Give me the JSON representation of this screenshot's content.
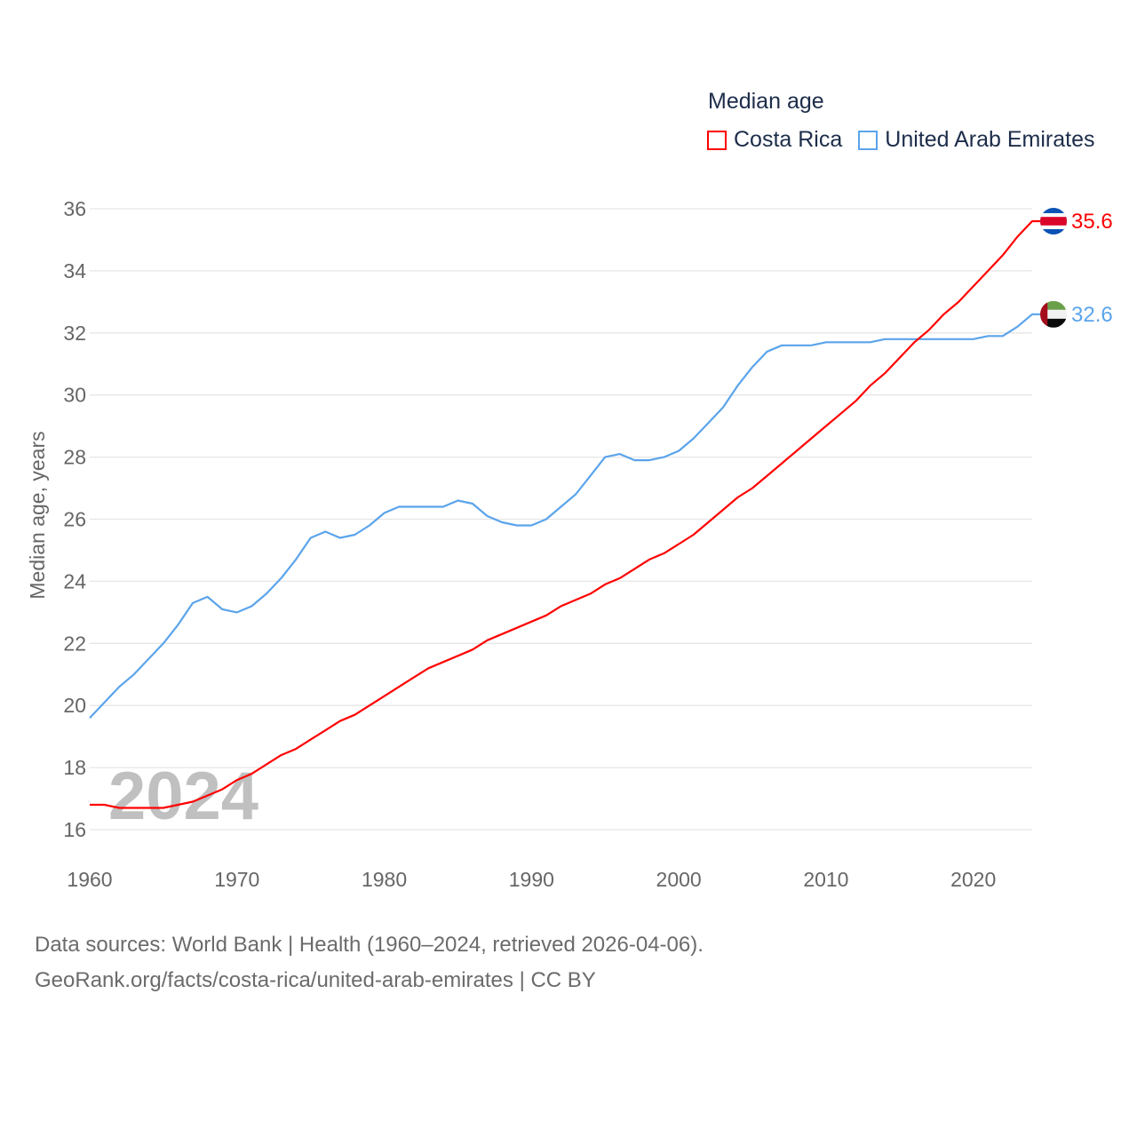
{
  "chart_data": {
    "type": "line",
    "title": "Median age",
    "xlabel": "",
    "ylabel": "Median age, years",
    "xlim": [
      1960,
      2024
    ],
    "ylim": [
      16,
      36
    ],
    "yticks": [
      16,
      18,
      20,
      22,
      24,
      26,
      28,
      30,
      32,
      34,
      36
    ],
    "xticks": [
      1960,
      1970,
      1980,
      1990,
      2000,
      2010,
      2020
    ],
    "grid": true,
    "legend_position": "top-right",
    "watermark_year": "2024",
    "x": [
      1960,
      1961,
      1962,
      1963,
      1964,
      1965,
      1966,
      1967,
      1968,
      1969,
      1970,
      1971,
      1972,
      1973,
      1974,
      1975,
      1976,
      1977,
      1978,
      1979,
      1980,
      1981,
      1982,
      1983,
      1984,
      1985,
      1986,
      1987,
      1988,
      1989,
      1990,
      1991,
      1992,
      1993,
      1994,
      1995,
      1996,
      1997,
      1998,
      1999,
      2000,
      2001,
      2002,
      2003,
      2004,
      2005,
      2006,
      2007,
      2008,
      2009,
      2010,
      2011,
      2012,
      2013,
      2014,
      2015,
      2016,
      2017,
      2018,
      2019,
      2020,
      2021,
      2022,
      2023,
      2024
    ],
    "series": [
      {
        "name": "Costa Rica",
        "color": "#ff0000",
        "end_label": "35.6",
        "flag": "costa-rica",
        "values": [
          16.8,
          16.8,
          16.7,
          16.7,
          16.7,
          16.7,
          16.8,
          16.9,
          17.1,
          17.3,
          17.6,
          17.8,
          18.1,
          18.4,
          18.6,
          18.9,
          19.2,
          19.5,
          19.7,
          20.0,
          20.3,
          20.6,
          20.9,
          21.2,
          21.4,
          21.6,
          21.8,
          22.1,
          22.3,
          22.5,
          22.7,
          22.9,
          23.2,
          23.4,
          23.6,
          23.9,
          24.1,
          24.4,
          24.7,
          24.9,
          25.2,
          25.5,
          25.9,
          26.3,
          26.7,
          27.0,
          27.4,
          27.8,
          28.2,
          28.6,
          29.0,
          29.4,
          29.8,
          30.3,
          30.7,
          31.2,
          31.7,
          32.1,
          32.6,
          33.0,
          33.5,
          34.0,
          34.5,
          35.1,
          35.6
        ]
      },
      {
        "name": "United Arab Emirates",
        "color": "#5ba4eb",
        "end_label": "32.6",
        "flag": "uae",
        "values": [
          19.6,
          20.1,
          20.6,
          21.0,
          21.5,
          22.0,
          22.6,
          23.3,
          23.5,
          23.1,
          23.0,
          23.2,
          23.6,
          24.1,
          24.7,
          25.4,
          25.6,
          25.4,
          25.5,
          25.8,
          26.2,
          26.4,
          26.4,
          26.4,
          26.4,
          26.6,
          26.5,
          26.1,
          25.9,
          25.8,
          25.8,
          26.0,
          26.4,
          26.8,
          27.4,
          28.0,
          28.1,
          27.9,
          27.9,
          28.0,
          28.2,
          28.6,
          29.1,
          29.6,
          30.3,
          30.9,
          31.4,
          31.6,
          31.6,
          31.6,
          31.7,
          31.7,
          31.7,
          31.7,
          31.8,
          31.8,
          31.8,
          31.8,
          31.8,
          31.8,
          31.8,
          31.9,
          31.9,
          32.2,
          32.6
        ]
      }
    ]
  },
  "footer": {
    "line1": "Data sources: World Bank | Health (1960–2024, retrieved 2026-04-06).",
    "line2": "GeoRank.org/facts/costa-rica/united-arab-emirates | CC BY"
  }
}
